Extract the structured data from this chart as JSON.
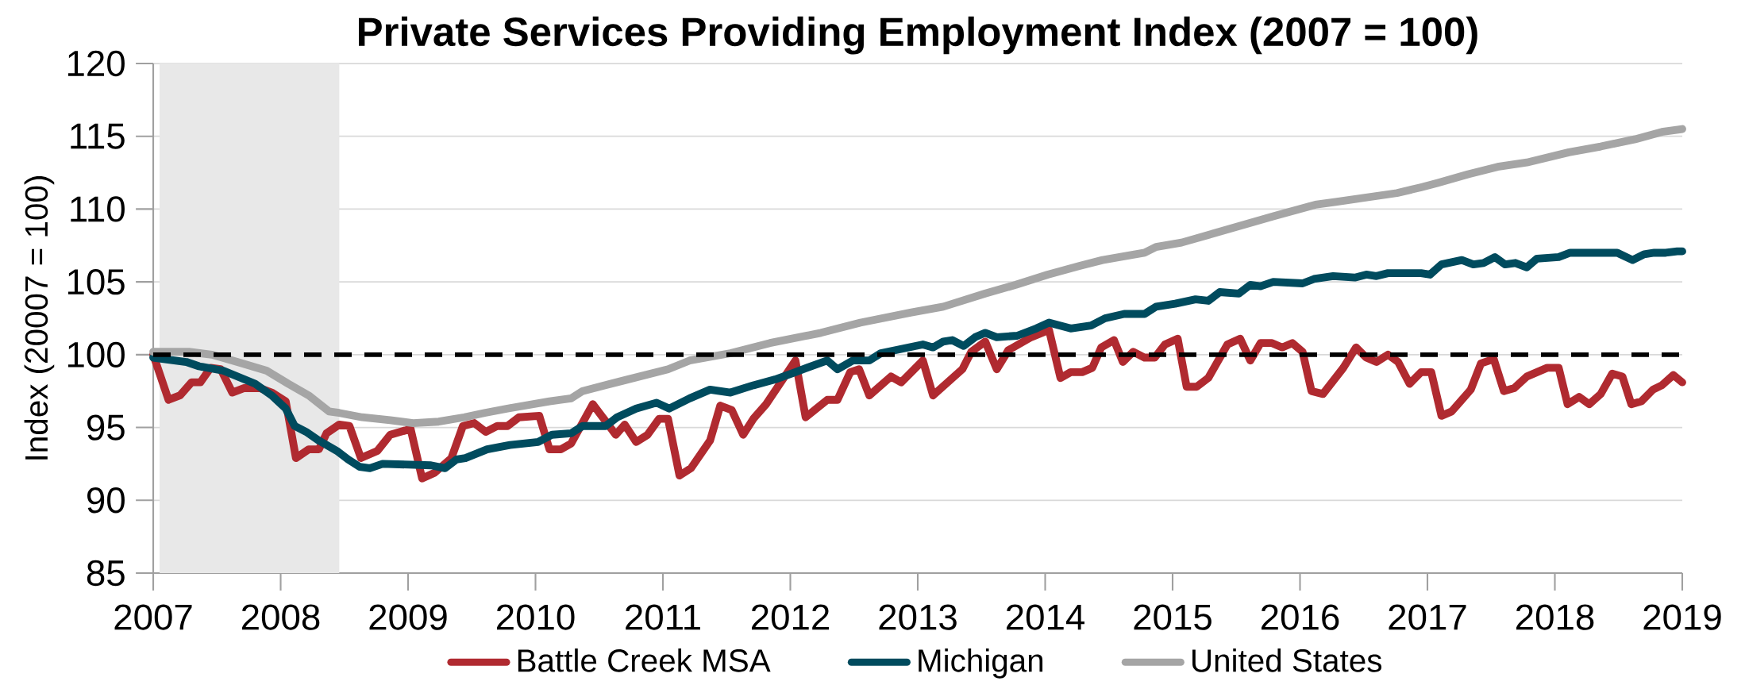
{
  "chart_data": {
    "type": "line",
    "title": "Private Services Providing Employment Index (2007 = 100)",
    "ylabel": "Index (20007 = 100)",
    "xlim": [
      2007,
      2019
    ],
    "ylim": [
      85,
      120
    ],
    "xticks": [
      2007,
      2008,
      2009,
      2010,
      2011,
      2012,
      2013,
      2014,
      2015,
      2016,
      2017,
      2018,
      2019
    ],
    "yticks": [
      85,
      90,
      95,
      100,
      105,
      110,
      115,
      120
    ],
    "grid": "y",
    "legend": "bottom",
    "ref_lines": [
      {
        "axis": "y",
        "value": 100,
        "color": "#000000",
        "line_style": "dashed"
      }
    ],
    "bands": [
      {
        "axis": "x",
        "from": 2007.05,
        "to": 2008.46,
        "color": "#e8e8e8"
      }
    ],
    "series": [
      {
        "name": "Battle Creek MSA",
        "color": "#b02a30",
        "x": [
          2007.0,
          2007.12,
          2007.21,
          2007.3,
          2007.37,
          2007.45,
          2007.53,
          2007.62,
          2007.71,
          2007.84,
          2007.93,
          2008.04,
          2008.12,
          2008.22,
          2008.3,
          2008.36,
          2008.46,
          2008.54,
          2008.63,
          2008.76,
          2008.86,
          2009.02,
          2009.11,
          2009.21,
          2009.34,
          2009.43,
          2009.52,
          2009.61,
          2009.7,
          2009.78,
          2009.87,
          2010.03,
          2010.11,
          2010.2,
          2010.28,
          2010.45,
          2010.63,
          2010.7,
          2010.79,
          2010.88,
          2010.97,
          2011.04,
          2011.13,
          2011.22,
          2011.37,
          2011.45,
          2011.54,
          2011.63,
          2011.71,
          2011.81,
          2012.04,
          2012.12,
          2012.29,
          2012.37,
          2012.47,
          2012.54,
          2012.62,
          2012.79,
          2012.87,
          2013.04,
          2013.12,
          2013.35,
          2013.42,
          2013.53,
          2013.62,
          2013.69,
          2013.71,
          2013.89,
          2014.03,
          2014.12,
          2014.2,
          2014.29,
          2014.37,
          2014.44,
          2014.54,
          2014.61,
          2014.69,
          2014.78,
          2014.86,
          2014.94,
          2015.04,
          2015.11,
          2015.19,
          2015.28,
          2015.43,
          2015.53,
          2015.61,
          2015.69,
          2015.78,
          2015.86,
          2015.94,
          2016.02,
          2016.09,
          2016.18,
          2016.34,
          2016.44,
          2016.52,
          2016.6,
          2016.69,
          2016.77,
          2016.86,
          2016.95,
          2017.03,
          2017.11,
          2017.19,
          2017.34,
          2017.42,
          2017.52,
          2017.6,
          2017.68,
          2017.78,
          2017.94,
          2018.03,
          2018.1,
          2018.19,
          2018.27,
          2018.36,
          2018.45,
          2018.53,
          2018.6,
          2018.68,
          2018.77,
          2018.84,
          2018.93,
          2019.0
        ],
        "values": [
          100.0,
          96.9,
          97.2,
          98.1,
          98.1,
          99.1,
          99.0,
          97.4,
          97.7,
          97.7,
          97.4,
          96.8,
          92.9,
          93.5,
          93.5,
          94.6,
          95.2,
          95.1,
          92.9,
          93.4,
          94.5,
          94.9,
          91.5,
          91.9,
          92.9,
          95.1,
          95.3,
          94.7,
          95.1,
          95.1,
          95.7,
          95.8,
          93.5,
          93.5,
          93.9,
          96.6,
          94.5,
          95.2,
          94.0,
          94.5,
          95.6,
          95.6,
          91.7,
          92.2,
          94.1,
          96.5,
          96.2,
          94.5,
          95.6,
          96.6,
          99.6,
          95.7,
          96.9,
          96.9,
          98.8,
          99.0,
          97.2,
          98.5,
          98.1,
          99.6,
          97.2,
          99.0,
          100.2,
          100.9,
          99.0,
          100.0,
          100.3,
          101.2,
          101.7,
          98.4,
          98.8,
          98.8,
          99.1,
          100.5,
          101.0,
          99.5,
          100.2,
          99.8,
          99.8,
          100.7,
          101.1,
          97.8,
          97.8,
          98.4,
          100.7,
          101.1,
          99.6,
          100.8,
          100.8,
          100.5,
          100.8,
          100.2,
          97.5,
          97.3,
          99.1,
          100.5,
          99.8,
          99.5,
          100.0,
          99.5,
          98.0,
          98.8,
          98.8,
          95.8,
          96.1,
          97.6,
          99.4,
          99.7,
          97.5,
          97.7,
          98.5,
          99.1,
          99.1,
          96.6,
          97.1,
          96.6,
          97.3,
          98.7,
          98.5,
          96.6,
          96.8,
          97.6,
          97.9,
          98.6,
          98.1
        ]
      },
      {
        "name": "Michigan",
        "color": "#004b5e",
        "x": [
          2007.0,
          2007.26,
          2007.36,
          2007.55,
          2007.8,
          2007.93,
          2008.04,
          2008.11,
          2008.2,
          2008.3,
          2008.44,
          2008.53,
          2008.62,
          2008.7,
          2008.8,
          2009.18,
          2009.29,
          2009.38,
          2009.45,
          2009.62,
          2009.8,
          2010.02,
          2010.13,
          2010.28,
          2010.37,
          2010.55,
          2010.64,
          2010.79,
          2010.95,
          2011.05,
          2011.21,
          2011.37,
          2011.53,
          2011.71,
          2011.88,
          2012.04,
          2012.13,
          2012.29,
          2012.37,
          2012.49,
          2012.62,
          2012.71,
          2012.93,
          2013.04,
          2013.12,
          2013.2,
          2013.27,
          2013.36,
          2013.45,
          2013.53,
          2013.62,
          2013.78,
          2013.93,
          2014.03,
          2014.2,
          2014.36,
          2014.47,
          2014.62,
          2014.78,
          2014.87,
          2015.02,
          2015.18,
          2015.28,
          2015.37,
          2015.52,
          2015.61,
          2015.69,
          2015.79,
          2016.02,
          2016.11,
          2016.26,
          2016.43,
          2016.52,
          2016.6,
          2016.69,
          2016.85,
          2016.95,
          2017.02,
          2017.11,
          2017.27,
          2017.36,
          2017.44,
          2017.53,
          2017.61,
          2017.69,
          2017.78,
          2017.86,
          2018.03,
          2018.12,
          2018.49,
          2018.61,
          2018.7,
          2018.78,
          2018.87,
          2018.96,
          2019.0
        ],
        "values": [
          99.8,
          99.5,
          99.2,
          98.9,
          98.0,
          97.2,
          96.3,
          95.1,
          94.7,
          94.1,
          93.4,
          92.8,
          92.3,
          92.2,
          92.5,
          92.4,
          92.2,
          92.8,
          92.9,
          93.5,
          93.8,
          94.0,
          94.5,
          94.6,
          95.1,
          95.1,
          95.7,
          96.3,
          96.7,
          96.3,
          97.0,
          97.6,
          97.4,
          97.9,
          98.3,
          98.8,
          99.1,
          99.6,
          99.0,
          99.6,
          99.6,
          100.1,
          100.5,
          100.7,
          100.5,
          100.9,
          101.0,
          100.6,
          101.2,
          101.5,
          101.2,
          101.3,
          101.8,
          102.2,
          101.8,
          102.0,
          102.5,
          102.8,
          102.8,
          103.3,
          103.5,
          103.8,
          103.7,
          104.3,
          104.2,
          104.8,
          104.7,
          105.0,
          104.9,
          105.2,
          105.4,
          105.3,
          105.5,
          105.4,
          105.6,
          105.6,
          105.6,
          105.5,
          106.2,
          106.5,
          106.2,
          106.3,
          106.7,
          106.2,
          106.3,
          106.0,
          106.6,
          106.7,
          107.0,
          107.0,
          106.5,
          106.9,
          107.0,
          107.0,
          107.1,
          107.1
        ]
      },
      {
        "name": "United States",
        "color": "#a5a5a5",
        "x": [
          2007.0,
          2007.28,
          2007.46,
          2007.66,
          2007.89,
          2008.06,
          2008.22,
          2008.38,
          2008.46,
          2008.64,
          2008.86,
          2009.04,
          2009.24,
          2009.44,
          2009.6,
          2009.78,
          2010.11,
          2010.28,
          2010.37,
          2010.68,
          2011.04,
          2011.21,
          2011.53,
          2011.84,
          2012.24,
          2012.55,
          2012.95,
          2013.2,
          2013.53,
          2013.77,
          2014.02,
          2014.27,
          2014.45,
          2014.78,
          2014.87,
          2015.07,
          2015.43,
          2015.79,
          2016.12,
          2016.28,
          2016.76,
          2016.95,
          2017.08,
          2017.32,
          2017.55,
          2017.78,
          2018.11,
          2018.36,
          2018.63,
          2018.84,
          2019.0
        ],
        "values": [
          100.2,
          100.2,
          100.0,
          99.5,
          98.9,
          98.0,
          97.2,
          96.1,
          96.0,
          95.7,
          95.5,
          95.3,
          95.4,
          95.7,
          96.0,
          96.3,
          96.8,
          97.0,
          97.5,
          98.2,
          99.0,
          99.6,
          100.1,
          100.8,
          101.5,
          102.2,
          102.9,
          103.3,
          104.2,
          104.8,
          105.5,
          106.1,
          106.5,
          107.0,
          107.4,
          107.7,
          108.6,
          109.5,
          110.3,
          110.5,
          111.1,
          111.5,
          111.8,
          112.4,
          112.9,
          113.2,
          113.9,
          114.3,
          114.8,
          115.3,
          115.5
        ]
      }
    ]
  }
}
